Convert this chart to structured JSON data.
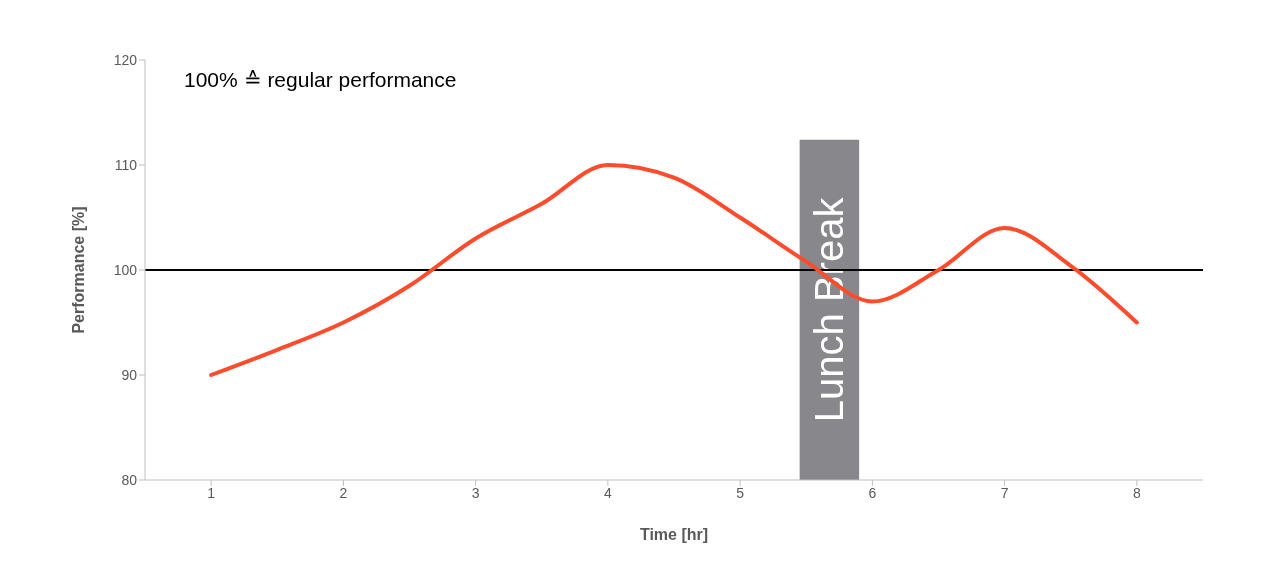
{
  "chart_data": {
    "type": "line",
    "xlabel": "Time [hr]",
    "ylabel": "Performance [%]",
    "annotations": [
      "100% ≙ regular performance"
    ],
    "x": [
      1,
      1.5,
      2,
      2.5,
      3,
      3.5,
      4,
      4.5,
      5,
      5.5,
      6,
      6.5,
      7,
      7.5,
      8
    ],
    "series": [
      {
        "color": "#fc4c2c",
        "values": [
          90,
          92.4,
          95,
          98.5,
          103,
          106.3,
          110,
          108.8,
          105,
          100.8,
          97,
          100,
          104,
          100.4,
          95
        ]
      }
    ],
    "xlim": [
      0.5,
      8.5
    ],
    "xticks": [
      1,
      2,
      3,
      4,
      5,
      6,
      7,
      8
    ],
    "ylim": [
      80,
      120
    ],
    "yticks": [
      80,
      90,
      100,
      110,
      120
    ],
    "ref_lines": [
      {
        "axis": "y",
        "value": 100,
        "color": "#000000"
      }
    ],
    "bands": [
      {
        "axis": "x",
        "from": 5.45,
        "to": 5.9,
        "label": "Lunch Break",
        "color": "#88878c"
      }
    ],
    "grid": false,
    "legend": false,
    "marker": "none",
    "line_style": "solid"
  }
}
